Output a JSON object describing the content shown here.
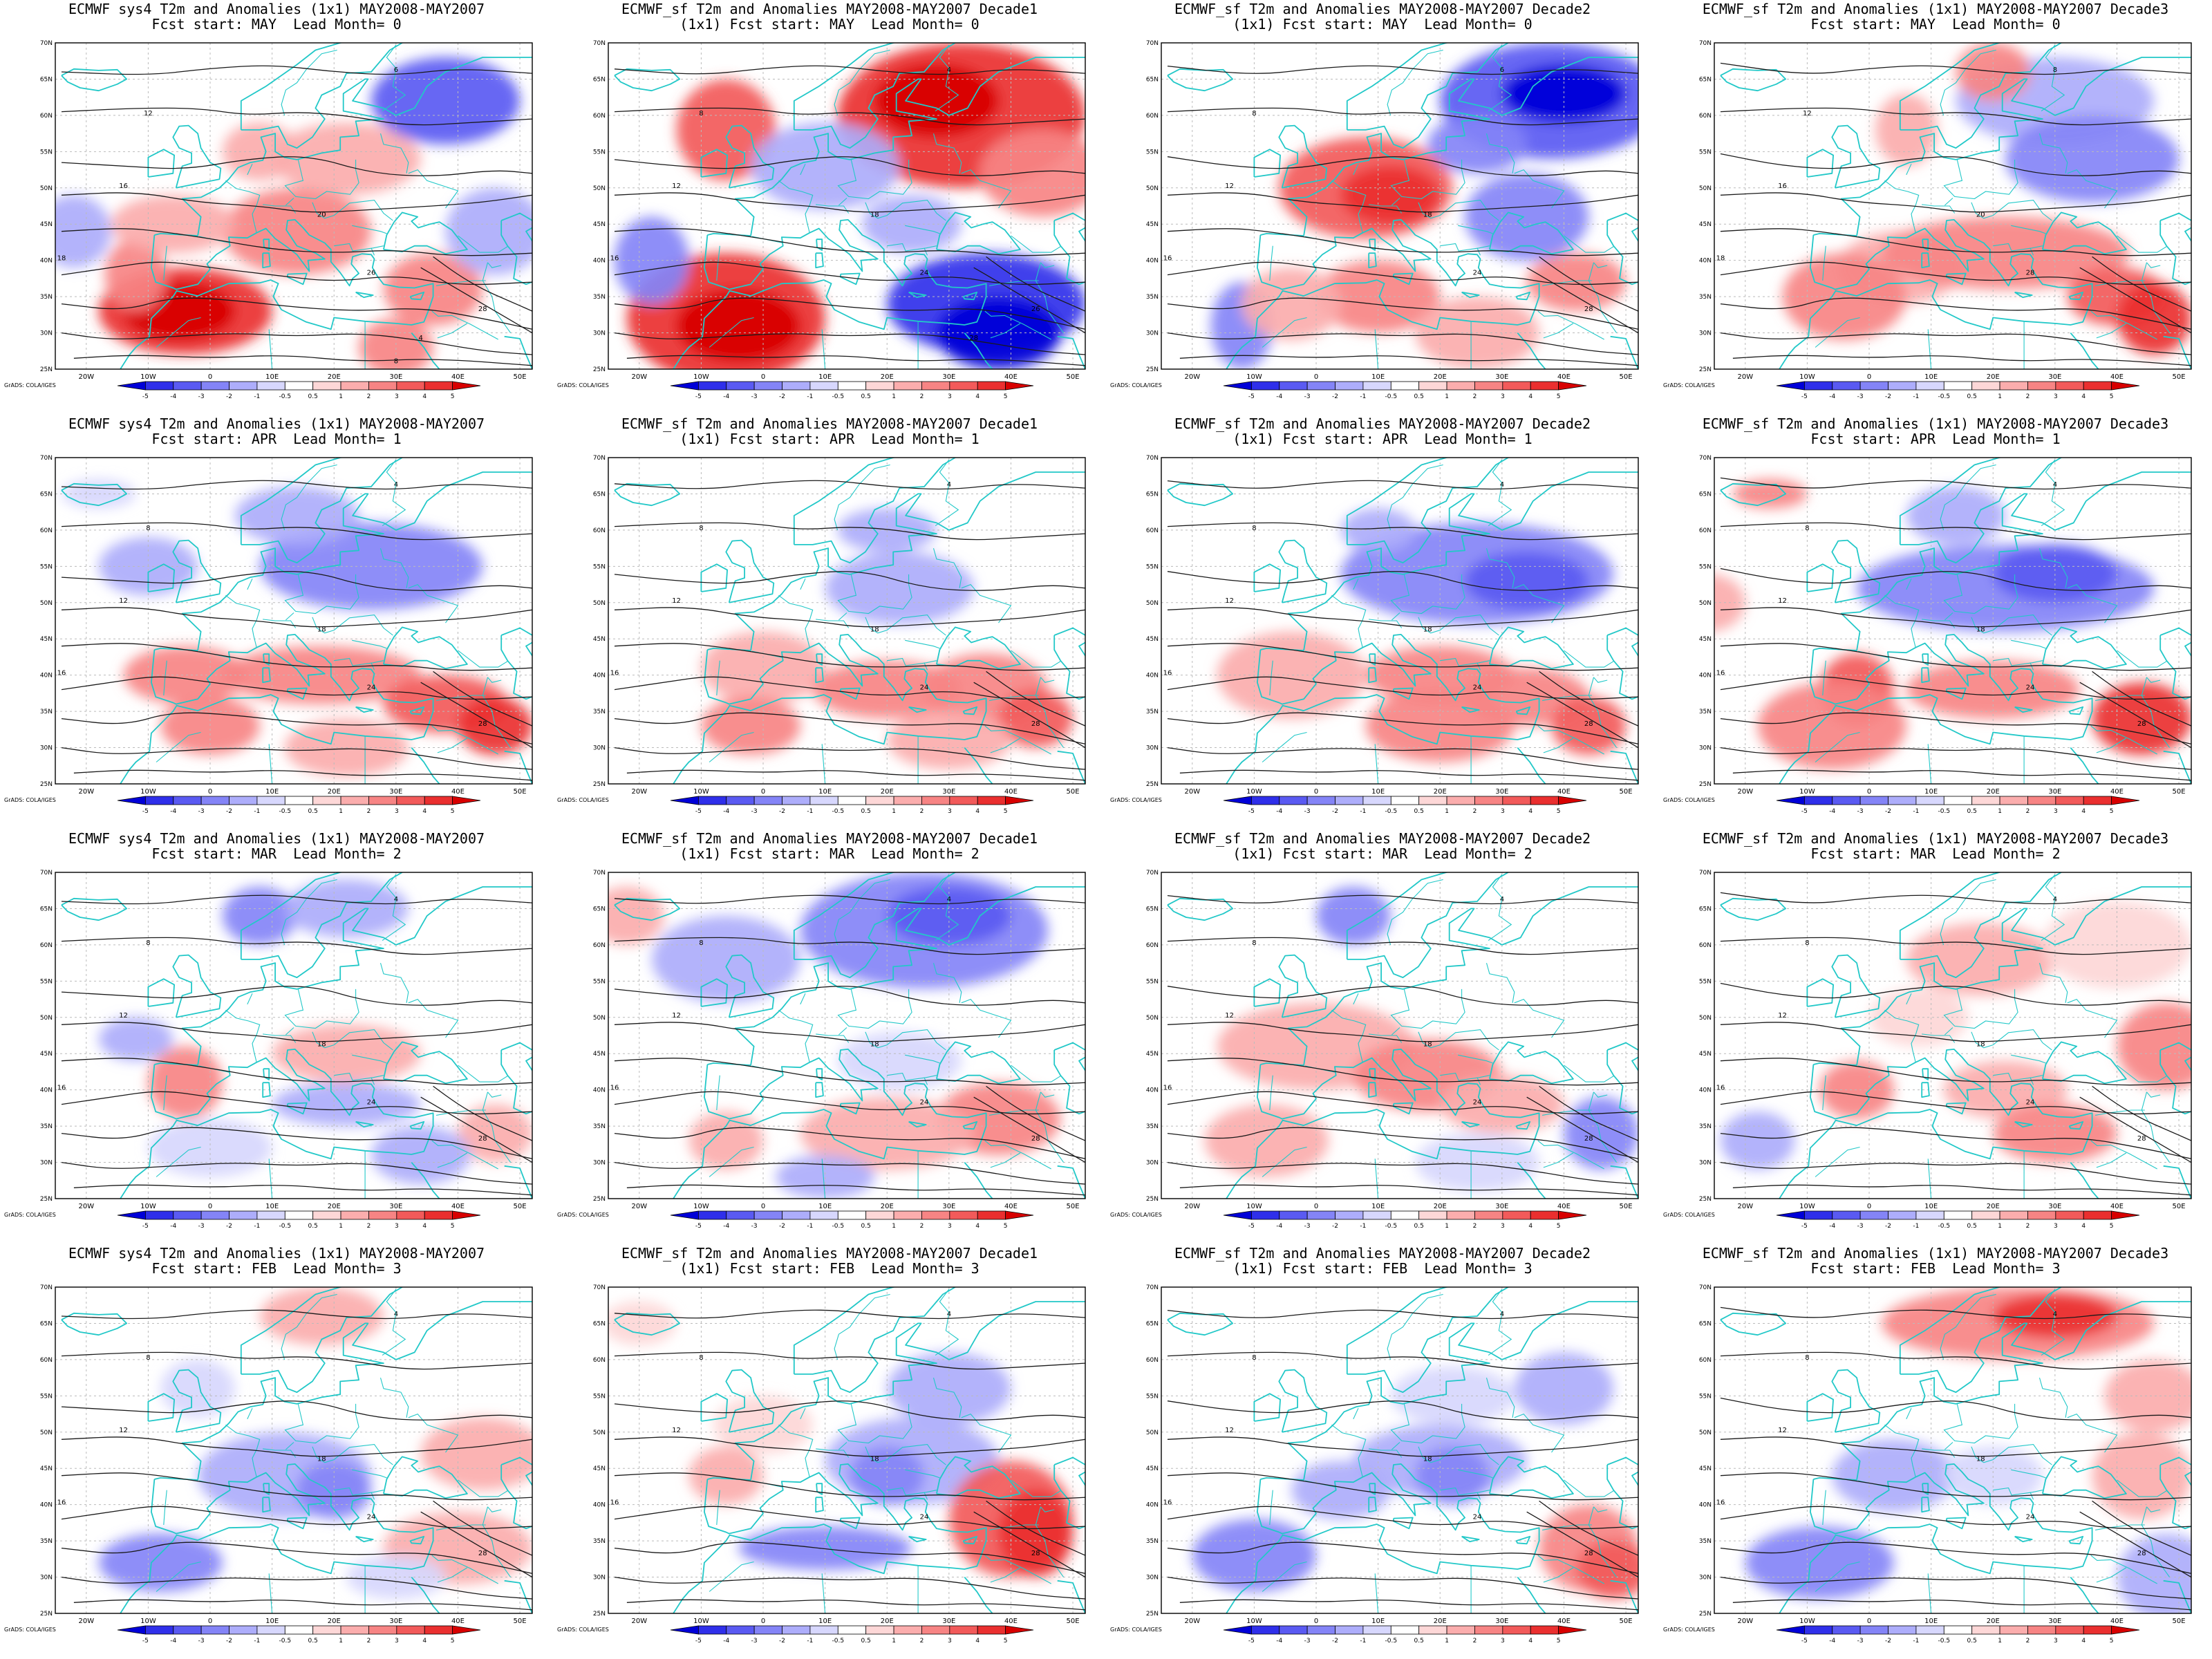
{
  "map": {
    "lat_labels": [
      "70N",
      "65N",
      "60N",
      "55N",
      "50N",
      "45N",
      "40N",
      "35N",
      "30N",
      "25N"
    ],
    "lon_labels": [
      "20W",
      "10W",
      "0",
      "10E",
      "20E",
      "30E",
      "40E",
      "50E"
    ],
    "colorbar_ticks": [
      "-5",
      "-4",
      "-3",
      "-2",
      "-1",
      "-0.5",
      "0.5",
      "1",
      "2",
      "3",
      "4",
      "5"
    ],
    "colorbar_colors": [
      "#0000d8",
      "#2f2fea",
      "#5a5af2",
      "#8484f7",
      "#adadfb",
      "#d7d7fd",
      "#ffffff",
      "#fdd7d7",
      "#fbadad",
      "#f78484",
      "#f25a5a",
      "#ea2f2f",
      "#d80000"
    ],
    "credit": "GrADS: COLA/IGES",
    "contour_labels_common": [
      "4",
      "8",
      "12",
      "16",
      "18",
      "20",
      "24",
      "28"
    ]
  },
  "panels": [
    {
      "title1": "ECMWF sys4 T2m and Anomalies (1x1) MAY2008-MAY2007",
      "title2": "Fcst start: MAY  Lead Month= 0",
      "labels": [
        "6",
        "12",
        "16",
        "18",
        "20",
        "24",
        "26",
        "28",
        "4",
        "8"
      ]
    },
    {
      "title1": "ECMWF_sf T2m and Anomalies MAY2008-MAY2007 Decade1",
      "title2": "(1x1) Fcst start: MAY  Lead Month= 0",
      "labels": [
        "4",
        "8",
        "12",
        "16",
        "18",
        "20",
        "24",
        "26",
        "28"
      ]
    },
    {
      "title1": "ECMWF_sf T2m and Anomalies MAY2008-MAY2007 Decade2",
      "title2": "(1x1) Fcst start: MAY  Lead Month= 0",
      "labels": [
        "6",
        "8",
        "12",
        "16",
        "18",
        "20",
        "24",
        "28"
      ]
    },
    {
      "title1": "ECMWF_sf T2m and Anomalies (1x1) MAY2008-MAY2007 Decade3",
      "title2": "Fcst start: MAY  Lead Month= 0",
      "labels": [
        "8",
        "12",
        "16",
        "18",
        "20",
        "24",
        "28"
      ]
    },
    {
      "title1": "ECMWF sys4 T2m and Anomalies (1x1) MAY2008-MAY2007",
      "title2": "Fcst start: APR  Lead Month= 1",
      "labels": [
        "4",
        "8",
        "12",
        "16",
        "18",
        "20",
        "24",
        "28"
      ]
    },
    {
      "title1": "ECMWF_sf T2m and Anomalies MAY2008-MAY2007 Decade1",
      "title2": "(1x1) Fcst start: APR  Lead Month= 1",
      "labels": [
        "4",
        "8",
        "12",
        "16",
        "18",
        "20",
        "24",
        "28"
      ]
    },
    {
      "title1": "ECMWF_sf T2m and Anomalies MAY2008-MAY2007 Decade2",
      "title2": "(1x1) Fcst start: APR  Lead Month= 1",
      "labels": [
        "4",
        "8",
        "12",
        "16",
        "18",
        "20",
        "24",
        "28"
      ]
    },
    {
      "title1": "ECMWF_sf T2m and Anomalies (1x1) MAY2008-MAY2007 Decade3",
      "title2": "Fcst start: APR  Lead Month= 1",
      "labels": [
        "4",
        "8",
        "12",
        "16",
        "18",
        "20",
        "24",
        "28"
      ]
    },
    {
      "title1": "ECMWF sys4 T2m and Anomalies (1x1) MAY2008-MAY2007",
      "title2": "Fcst start: MAR  Lead Month= 2",
      "labels": [
        "4",
        "8",
        "12",
        "16",
        "18",
        "20",
        "24",
        "28"
      ]
    },
    {
      "title1": "ECMWF_sf T2m and Anomalies MAY2008-MAY2007 Decade1",
      "title2": "(1x1) Fcst start: MAR  Lead Month= 2",
      "labels": [
        "4",
        "8",
        "12",
        "16",
        "18",
        "20",
        "24",
        "28"
      ]
    },
    {
      "title1": "ECMWF_sf T2m and Anomalies MAY2008-MAY2007 Decade2",
      "title2": "(1x1) Fcst start: MAR  Lead Month= 2",
      "labels": [
        "4",
        "8",
        "12",
        "16",
        "18",
        "20",
        "24",
        "28"
      ]
    },
    {
      "title1": "ECMWF_sf T2m and Anomalies (1x1) MAY2008-MAY2007 Decade3",
      "title2": "Fcst start: MAR  Lead Month= 2",
      "labels": [
        "4",
        "8",
        "12",
        "16",
        "18",
        "20",
        "24",
        "28"
      ]
    },
    {
      "title1": "ECMWF sys4 T2m and Anomalies (1x1) MAY2008-MAY2007",
      "title2": "Fcst start: FEB  Lead Month= 3",
      "labels": [
        "4",
        "8",
        "12",
        "16",
        "18",
        "20",
        "24",
        "28"
      ]
    },
    {
      "title1": "ECMWF_sf T2m and Anomalies MAY2008-MAY2007 Decade1",
      "title2": "(1x1) Fcst start: FEB  Lead Month= 3",
      "labels": [
        "4",
        "8",
        "12",
        "16",
        "18",
        "20",
        "24",
        "28"
      ]
    },
    {
      "title1": "ECMWF_sf T2m and Anomalies MAY2008-MAY2007 Decade2",
      "title2": "(1x1) Fcst start: FEB  Lead Month= 3",
      "labels": [
        "4",
        "8",
        "12",
        "16",
        "18",
        "20",
        "24",
        "28"
      ]
    },
    {
      "title1": "ECMWF_sf T2m and Anomalies (1x1) MAY2008-MAY2007 Decade3",
      "title2": "Fcst start: FEB  Lead Month= 3",
      "labels": [
        "4",
        "8",
        "12",
        "16",
        "18",
        "20",
        "24",
        "28"
      ]
    }
  ]
}
